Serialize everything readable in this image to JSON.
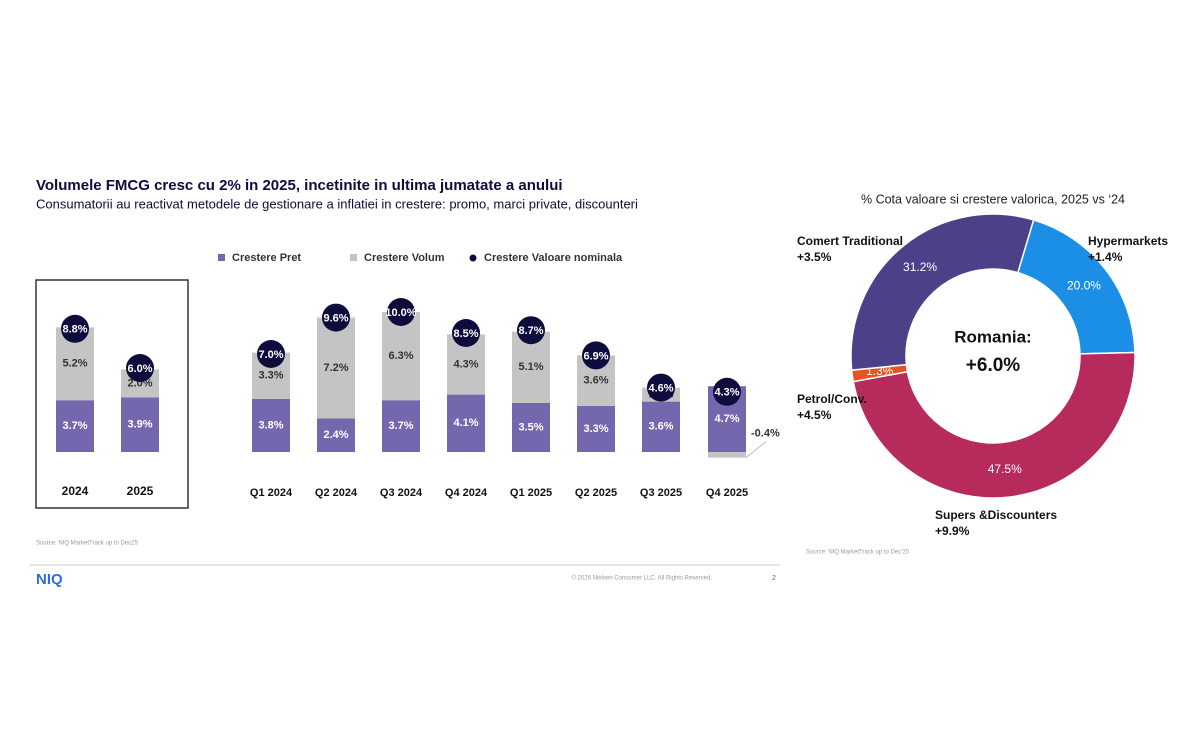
{
  "chart_data": [
    {
      "type": "bar",
      "stacked": true,
      "title": "Volumele FMCG cresc cu 2% in 2025, incetinite in ultima jumatate a anului",
      "subtitle": "Consumatorii au reactivat metodele de gestionare a inflatiei in crestere: promo, marci private, discounteri",
      "source": "Source: NIQ MarketTrack up to Dec25",
      "categories": [
        "2024",
        "2025",
        "Q1 2024",
        "Q2 2024",
        "Q3 2024",
        "Q4 2024",
        "Q1 2025",
        "Q2 2025",
        "Q3 2025",
        "Q4 2025"
      ],
      "series": [
        {
          "name": "Crestere Pret",
          "color": "#7567ad",
          "values": [
            3.7,
            3.9,
            3.8,
            2.4,
            3.7,
            4.1,
            3.5,
            3.3,
            3.6,
            4.7
          ],
          "value_labels": [
            "3.7%",
            "3.9%",
            "3.8%",
            "2.4%",
            "3.7%",
            "4.1%",
            "3.5%",
            "3.3%",
            "3.6%",
            "4.7%"
          ]
        },
        {
          "name": "Crestere Volum",
          "color": "#c4c4c4",
          "values": [
            5.2,
            2.0,
            3.3,
            7.2,
            6.3,
            4.3,
            5.1,
            3.6,
            1.0,
            -0.4
          ],
          "value_labels": [
            "5.2%",
            "2.0%",
            "3.3%",
            "7.2%",
            "6.3%",
            "4.3%",
            "5.1%",
            "3.6%",
            "1.0%",
            "-0.4%"
          ]
        },
        {
          "name": "Crestere Valoare nominala",
          "color": "#0e0b3d",
          "mark": "circle",
          "values": [
            8.8,
            6.0,
            7.0,
            9.6,
            10.0,
            8.5,
            8.7,
            6.9,
            4.6,
            4.3
          ],
          "value_labels": [
            "8.8%",
            "6.0%",
            "7.0%",
            "9.6%",
            "10.0%",
            "8.5%",
            "8.7%",
            "6.9%",
            "4.6%",
            "4.3%"
          ]
        }
      ]
    },
    {
      "type": "donut",
      "title": "% Cota valoare si crestere valorica, 2025 vs ‘24",
      "source": "Source: NIQ MarketTrack up to Dec'25",
      "center_label": "Romania:",
      "center_value": "+6.0%",
      "categories": [
        "Hypermarkets",
        "Supers &Discounters",
        "Petrol/Conv.",
        "Comert Traditional"
      ],
      "values": [
        20.0,
        47.5,
        1.3,
        31.2
      ],
      "value_labels": [
        "20.0%",
        "47.5%",
        "1.3%",
        "31.2%"
      ],
      "colors": [
        "#1b8fe6",
        "#b72a5c",
        "#e85420",
        "#4c4189"
      ],
      "growth_labels": [
        "+1.4%",
        "+9.9%",
        "+4.5%",
        "+3.5%"
      ]
    }
  ],
  "footer": {
    "logo": "NIQ",
    "copyright": "© 2026 Nielsen Consumer LLC. All Rights Reserved.",
    "page": "2"
  }
}
